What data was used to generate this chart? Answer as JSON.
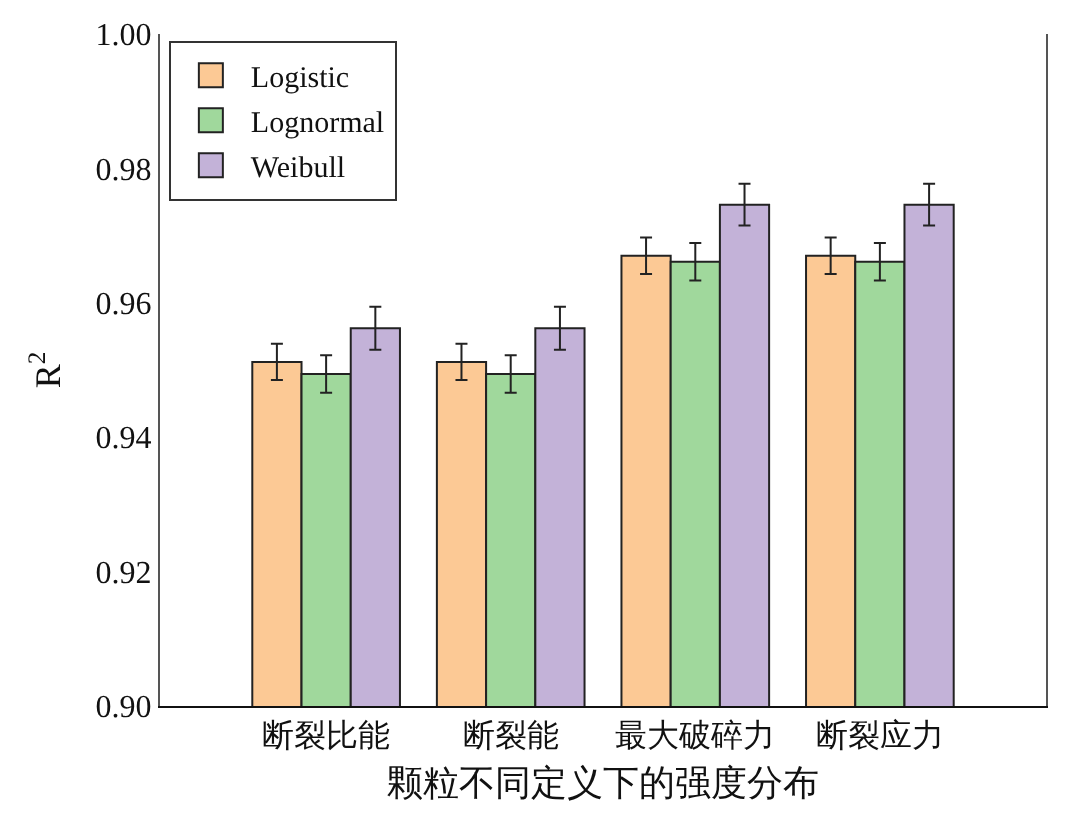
{
  "chart_data": {
    "type": "bar",
    "xlabel": "颗粒不同定义下的强度分布",
    "ylabel": "R$^{2}$",
    "categories": [
      "断裂比能",
      "断裂能",
      "最大破碎力",
      "断裂应力"
    ],
    "series": [
      {
        "name": "Logistic",
        "color": "#fcc995",
        "values": [
          0.9512,
          0.9512,
          0.967,
          0.967
        ],
        "errors": [
          0.0027,
          0.0027,
          0.0027,
          0.0027
        ]
      },
      {
        "name": "Lognormal",
        "color": "#a0d89c",
        "values": [
          0.9494,
          0.9494,
          0.9661,
          0.9661
        ],
        "errors": [
          0.0028,
          0.0028,
          0.0028,
          0.0028
        ]
      },
      {
        "name": "Weibull",
        "color": "#c3b2d8",
        "values": [
          0.9562,
          0.9562,
          0.9746,
          0.9746
        ],
        "errors": [
          0.0032,
          0.0032,
          0.0031,
          0.0031
        ]
      }
    ],
    "ylim": [
      0.9,
      1.0
    ],
    "yticks": [
      {
        "value": 0.9,
        "label": "0.90"
      },
      {
        "value": 0.92,
        "label": "0.92"
      },
      {
        "value": 0.94,
        "label": "0.94"
      },
      {
        "value": 0.96,
        "label": "0.96"
      },
      {
        "value": 0.98,
        "label": "0.98"
      },
      {
        "value": 1.0,
        "label": "1.00"
      }
    ],
    "grid": false,
    "legend": "top left"
  }
}
